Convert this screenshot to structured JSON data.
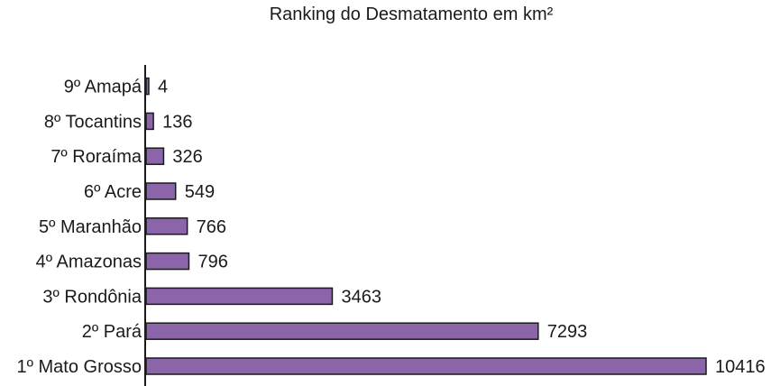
{
  "chart_data": {
    "type": "bar",
    "orientation": "horizontal",
    "title": "Ranking do Desmatamento em km²",
    "xlabel": "",
    "ylabel": "",
    "categories": [
      "1º Mato Grosso",
      "2º Pará",
      "3º Rondônia",
      "4º Amazonas",
      "5º Maranhão",
      "6º Acre",
      "7º Roraíma",
      "8º Tocantins",
      "9º Amapá"
    ],
    "values": [
      10416,
      7293,
      3463,
      796,
      766,
      549,
      326,
      136,
      4
    ],
    "value_labels": [
      "10416",
      "7293",
      "3463",
      "796",
      "766",
      "549",
      "326",
      "136",
      "4"
    ],
    "xlim": [
      0,
      10416
    ],
    "grid": false,
    "legend": "none",
    "bar_color": "#8c64aa",
    "bar_stroke": "#1a1a1a"
  }
}
